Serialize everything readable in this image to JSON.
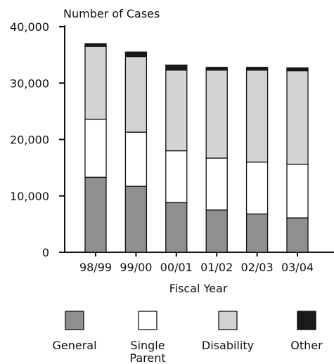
{
  "chart_data": {
    "type": "bar",
    "stacked": true,
    "title": "",
    "ylabel": "Number of Cases",
    "xlabel": "Fiscal Year",
    "ylim": [
      0,
      40000
    ],
    "yticks": [
      "0",
      "10,000",
      "20,000",
      "30,000",
      "40,000"
    ],
    "ytick_values": [
      0,
      10000,
      20000,
      30000,
      40000
    ],
    "categories": [
      "98/99",
      "99/00",
      "00/01",
      "01/02",
      "02/03",
      "03/04"
    ],
    "series": [
      {
        "name": "General",
        "color": "#8f8f8f",
        "values": [
          13300,
          11700,
          8800,
          7500,
          6800,
          6100
        ]
      },
      {
        "name": "Single Parent",
        "color": "#ffffff",
        "values": [
          10300,
          9600,
          9200,
          9200,
          9200,
          9500
        ]
      },
      {
        "name": "Disability",
        "color": "#d4d4d4",
        "values": [
          12900,
          13400,
          14300,
          15600,
          16300,
          16600
        ]
      },
      {
        "name": "Other",
        "color": "#1a1a1a",
        "values": [
          500,
          800,
          900,
          500,
          500,
          500
        ]
      }
    ],
    "legend_position": "bottom",
    "grid": false
  }
}
